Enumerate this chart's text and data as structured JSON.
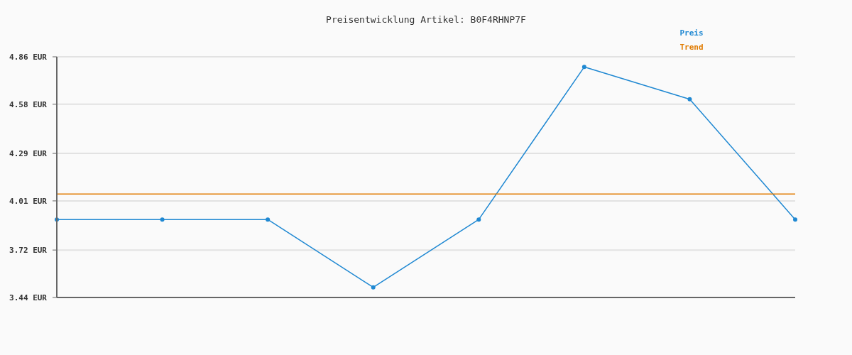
{
  "chart_data": {
    "type": "line",
    "title": "Preisentwicklung Artikel: B0F4RHNP7F",
    "categories": [
      null,
      null,
      null,
      null,
      null,
      null,
      null,
      null
    ],
    "series": [
      {
        "name": "Preis",
        "color": "#1f88d2",
        "values": [
          3.9,
          3.9,
          3.9,
          3.5,
          3.9,
          4.8,
          4.61,
          3.9
        ]
      },
      {
        "name": "Trend",
        "color": "#e07b00",
        "values": [
          4.05,
          4.05,
          4.05,
          4.05,
          4.05,
          4.05,
          4.05,
          4.05
        ],
        "marker": "none"
      }
    ],
    "ylim": [
      3.44,
      4.86
    ],
    "yticks": [
      {
        "value": 3.44,
        "label": "3.44 EUR"
      },
      {
        "value": 3.72,
        "label": "3.72 EUR"
      },
      {
        "value": 4.01,
        "label": "4.01 EUR"
      },
      {
        "value": 4.29,
        "label": "4.29 EUR"
      },
      {
        "value": 4.58,
        "label": "4.58 EUR"
      },
      {
        "value": 4.86,
        "label": "4.86 EUR"
      }
    ],
    "grid": "y",
    "legend": "top right",
    "marker": "circle",
    "line_style": "solid"
  }
}
